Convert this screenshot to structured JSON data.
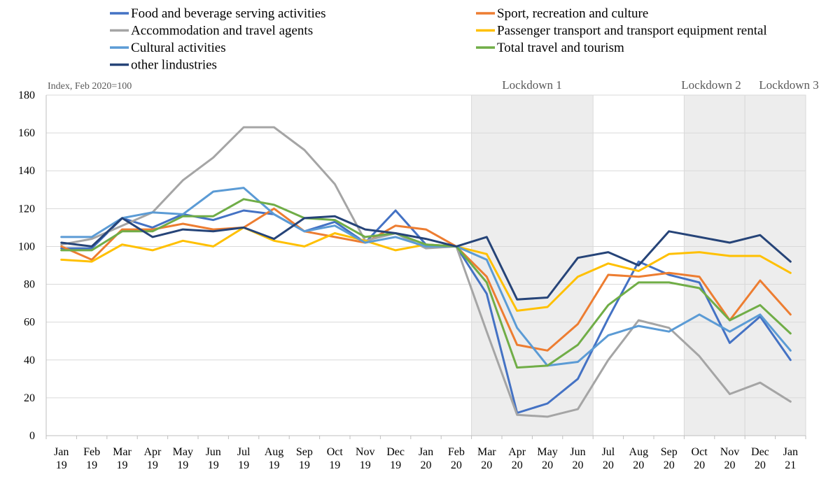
{
  "chart_data": {
    "type": "line",
    "ylabel": "Index, Feb 2020=100",
    "ylim": [
      0,
      180
    ],
    "yticks": [
      0,
      20,
      40,
      60,
      80,
      100,
      120,
      140,
      160,
      180
    ],
    "grid": true,
    "legend_position": "top",
    "categories": [
      [
        "Jan",
        "19"
      ],
      [
        "Feb",
        "19"
      ],
      [
        "Mar",
        "19"
      ],
      [
        "Apr",
        "19"
      ],
      [
        "May",
        "19"
      ],
      [
        "Jun",
        "19"
      ],
      [
        "Jul",
        "19"
      ],
      [
        "Aug",
        "19"
      ],
      [
        "Sep",
        "19"
      ],
      [
        "Oct",
        "19"
      ],
      [
        "Nov",
        "19"
      ],
      [
        "Dec",
        "19"
      ],
      [
        "Jan",
        "20"
      ],
      [
        "Feb",
        "20"
      ],
      [
        "Mar",
        "20"
      ],
      [
        "Apr",
        "20"
      ],
      [
        "May",
        "20"
      ],
      [
        "Jun",
        "20"
      ],
      [
        "Jul",
        "20"
      ],
      [
        "Aug",
        "20"
      ],
      [
        "Sep",
        "20"
      ],
      [
        "Oct",
        "20"
      ],
      [
        "Nov",
        "20"
      ],
      [
        "Dec",
        "20"
      ],
      [
        "Jan",
        "21"
      ]
    ],
    "shaded_regions": [
      {
        "label": "Lockdown 1",
        "start_index": 14,
        "end_index": 17
      },
      {
        "label": "Lockdown 2",
        "start_index": 21,
        "end_index": 22
      },
      {
        "label": "Lockdown 3",
        "start_index": 23,
        "end_index": 24
      }
    ],
    "series": [
      {
        "name": "Food and beverage serving activities",
        "color": "#4472C4",
        "values": [
          99,
          99,
          115,
          110,
          117,
          114,
          119,
          117,
          108,
          113,
          102,
          119,
          101,
          100,
          75,
          12,
          17,
          30,
          62,
          92,
          85,
          81,
          49,
          63,
          40
        ]
      },
      {
        "name": "Sport, recreation and culture",
        "color": "#ED7D31",
        "values": [
          100,
          93,
          109,
          109,
          112,
          109,
          110,
          120,
          108,
          105,
          102,
          111,
          109,
          100,
          84,
          48,
          45,
          59,
          85,
          84,
          86,
          84,
          61,
          82,
          64
        ]
      },
      {
        "name": "Accommodation and travel agents",
        "color": "#A5A5A5",
        "values": [
          101,
          104,
          111,
          118,
          135,
          147,
          163,
          163,
          151,
          133,
          103,
          107,
          99,
          100,
          55,
          11,
          10,
          14,
          40,
          61,
          57,
          42,
          22,
          28,
          18
        ]
      },
      {
        "name": "Passenger transport and transport equipment rental",
        "color": "#FFC000",
        "values": [
          93,
          92,
          101,
          98,
          103,
          100,
          110,
          103,
          100,
          107,
          103,
          98,
          101,
          100,
          96,
          66,
          68,
          84,
          91,
          87,
          96,
          97,
          95,
          95,
          86
        ]
      },
      {
        "name": "Cultural activities",
        "color": "#5B9BD5",
        "values": [
          105,
          105,
          115,
          118,
          117,
          129,
          131,
          117,
          108,
          111,
          102,
          105,
          100,
          100,
          93,
          57,
          37,
          39,
          53,
          58,
          55,
          64,
          55,
          64,
          45
        ]
      },
      {
        "name": "Total travel and tourism",
        "color": "#70AD47",
        "values": [
          98,
          98,
          108,
          108,
          116,
          116,
          125,
          122,
          115,
          114,
          105,
          107,
          101,
          100,
          81,
          36,
          37,
          48,
          69,
          81,
          81,
          78,
          61,
          69,
          54
        ]
      },
      {
        "name": "other lindustries",
        "color": "#264478",
        "values": [
          102,
          100,
          115,
          105,
          109,
          108,
          110,
          104,
          115,
          116,
          109,
          107,
          104,
          100,
          105,
          72,
          73,
          94,
          97,
          90,
          108,
          105,
          102,
          106,
          92
        ]
      }
    ]
  }
}
